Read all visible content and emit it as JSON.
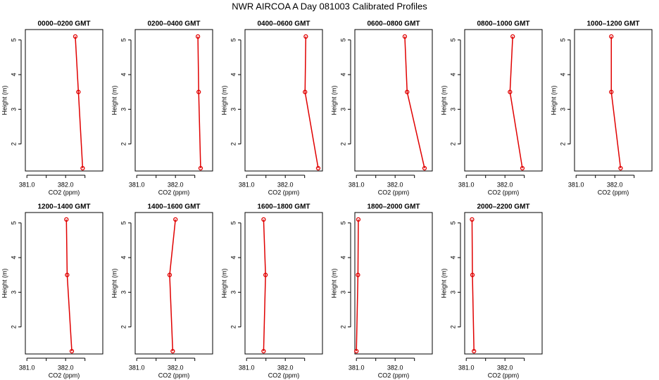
{
  "title": "NWR AIRCOA A  Day 081003  Calibrated Profiles",
  "chart_data": [
    {
      "type": "line",
      "title": "0000–0200 GMT",
      "xlabel": "CO2 (ppm)",
      "ylabel": "Height (m)",
      "color": "#e00000",
      "x": [
        382.25,
        382.33,
        382.44
      ],
      "y": [
        5.1,
        3.5,
        1.3
      ],
      "xlim": [
        380.96,
        382.96
      ],
      "ylim": [
        1.22,
        5.3
      ],
      "xticks": [
        {
          "value": 381,
          "label": "381.0"
        },
        {
          "value": 382,
          "label": "382.0"
        }
      ],
      "xminor": [
        381.5,
        382.5
      ],
      "yticks": [
        2,
        3,
        4,
        5
      ]
    },
    {
      "type": "line",
      "title": "0200–0400 GMT",
      "xlabel": "CO2 (ppm)",
      "ylabel": "Height (m)",
      "color": "#e00000",
      "x": [
        382.58,
        382.6,
        382.65
      ],
      "y": [
        5.1,
        3.5,
        1.3
      ],
      "xlim": [
        380.96,
        382.96
      ],
      "ylim": [
        1.22,
        5.3
      ],
      "xticks": [
        {
          "value": 381,
          "label": "381.0"
        },
        {
          "value": 382,
          "label": "382.0"
        }
      ],
      "xminor": [
        381.5,
        382.5
      ],
      "yticks": [
        2,
        3,
        4,
        5
      ]
    },
    {
      "type": "line",
      "title": "0400–0600 GMT",
      "xlabel": "CO2 (ppm)",
      "ylabel": "Height (m)",
      "color": "#e00000",
      "x": [
        382.53,
        382.51,
        382.85
      ],
      "y": [
        5.1,
        3.5,
        1.3
      ],
      "xlim": [
        380.96,
        382.96
      ],
      "ylim": [
        1.22,
        5.3
      ],
      "xticks": [
        {
          "value": 381,
          "label": "381.0"
        },
        {
          "value": 382,
          "label": "382.0"
        }
      ],
      "xminor": [
        381.5,
        382.5
      ],
      "yticks": [
        2,
        3,
        4,
        5
      ]
    },
    {
      "type": "line",
      "title": "0600–0800 GMT",
      "xlabel": "CO2 (ppm)",
      "ylabel": "Height (m)",
      "color": "#e00000",
      "x": [
        382.25,
        382.31,
        382.76
      ],
      "y": [
        5.1,
        3.5,
        1.3
      ],
      "xlim": [
        380.96,
        382.96
      ],
      "ylim": [
        1.22,
        5.3
      ],
      "xticks": [
        {
          "value": 381,
          "label": "381.0"
        },
        {
          "value": 382,
          "label": "382.0"
        }
      ],
      "xminor": [
        381.5,
        382.5
      ],
      "yticks": [
        2,
        3,
        4,
        5
      ]
    },
    {
      "type": "line",
      "title": "0800–1000 GMT",
      "xlabel": "CO2 (ppm)",
      "ylabel": "Height (m)",
      "color": "#e00000",
      "x": [
        382.2,
        382.13,
        382.45
      ],
      "y": [
        5.1,
        3.5,
        1.3
      ],
      "xlim": [
        380.96,
        382.96
      ],
      "ylim": [
        1.22,
        5.3
      ],
      "xticks": [
        {
          "value": 381,
          "label": "381.0"
        },
        {
          "value": 382,
          "label": "382.0"
        }
      ],
      "xminor": [
        381.5,
        382.5
      ],
      "yticks": [
        2,
        3,
        4,
        5
      ]
    },
    {
      "type": "line",
      "title": "1000–1200 GMT",
      "xlabel": "CO2 (ppm)",
      "ylabel": "Height (m)",
      "color": "#e00000",
      "x": [
        381.91,
        381.91,
        382.15
      ],
      "y": [
        5.1,
        3.5,
        1.3
      ],
      "xlim": [
        380.96,
        382.96
      ],
      "ylim": [
        1.22,
        5.3
      ],
      "xticks": [
        {
          "value": 381,
          "label": "381.0"
        },
        {
          "value": 382,
          "label": "382.0"
        }
      ],
      "xminor": [
        381.5,
        382.5
      ],
      "yticks": [
        2,
        3,
        4,
        5
      ]
    },
    {
      "type": "line",
      "title": "1200–1400 GMT",
      "xlabel": "CO2 (ppm)",
      "ylabel": "Height (m)",
      "color": "#e00000",
      "x": [
        382.02,
        382.04,
        382.16
      ],
      "y": [
        5.1,
        3.5,
        1.3
      ],
      "xlim": [
        380.96,
        382.96
      ],
      "ylim": [
        1.22,
        5.3
      ],
      "xticks": [
        {
          "value": 381,
          "label": "381.0"
        },
        {
          "value": 382,
          "label": "382.0"
        }
      ],
      "xminor": [
        381.5,
        382.5
      ],
      "yticks": [
        2,
        3,
        4,
        5
      ]
    },
    {
      "type": "line",
      "title": "1400–1600 GMT",
      "xlabel": "CO2 (ppm)",
      "ylabel": "Height (m)",
      "color": "#e00000",
      "x": [
        382.0,
        381.85,
        381.93
      ],
      "y": [
        5.1,
        3.5,
        1.3
      ],
      "xlim": [
        380.96,
        382.96
      ],
      "ylim": [
        1.22,
        5.3
      ],
      "xticks": [
        {
          "value": 381,
          "label": "381.0"
        },
        {
          "value": 382,
          "label": "382.0"
        }
      ],
      "xminor": [
        381.5,
        382.5
      ],
      "yticks": [
        2,
        3,
        4,
        5
      ]
    },
    {
      "type": "line",
      "title": "1600–1800 GMT",
      "xlabel": "CO2 (ppm)",
      "ylabel": "Height (m)",
      "color": "#e00000",
      "x": [
        381.44,
        381.49,
        381.44
      ],
      "y": [
        5.1,
        3.5,
        1.3
      ],
      "xlim": [
        380.96,
        382.96
      ],
      "ylim": [
        1.22,
        5.3
      ],
      "xticks": [
        {
          "value": 381,
          "label": "381.0"
        },
        {
          "value": 382,
          "label": "382.0"
        }
      ],
      "xminor": [
        381.5,
        382.5
      ],
      "yticks": [
        2,
        3,
        4,
        5
      ]
    },
    {
      "type": "line",
      "title": "1800–2000 GMT",
      "xlabel": "CO2 (ppm)",
      "ylabel": "Height (m)",
      "color": "#e00000",
      "x": [
        381.05,
        381.04,
        381.0
      ],
      "y": [
        5.1,
        3.5,
        1.3
      ],
      "xlim": [
        380.96,
        382.96
      ],
      "ylim": [
        1.22,
        5.3
      ],
      "xticks": [
        {
          "value": 381,
          "label": "381.0"
        },
        {
          "value": 382,
          "label": "382.0"
        }
      ],
      "xminor": [
        381.5,
        382.5
      ],
      "yticks": [
        2,
        3,
        4,
        5
      ]
    },
    {
      "type": "line",
      "title": "2000–2200 GMT",
      "xlabel": "CO2 (ppm)",
      "ylabel": "Height (m)",
      "color": "#e00000",
      "x": [
        381.15,
        381.16,
        381.2
      ],
      "y": [
        5.1,
        3.5,
        1.3
      ],
      "xlim": [
        380.96,
        382.96
      ],
      "ylim": [
        1.22,
        5.3
      ],
      "xticks": [
        {
          "value": 381,
          "label": "381.0"
        },
        {
          "value": 382,
          "label": "382.0"
        }
      ],
      "xminor": [
        381.5,
        382.5
      ],
      "yticks": [
        2,
        3,
        4,
        5
      ]
    }
  ]
}
